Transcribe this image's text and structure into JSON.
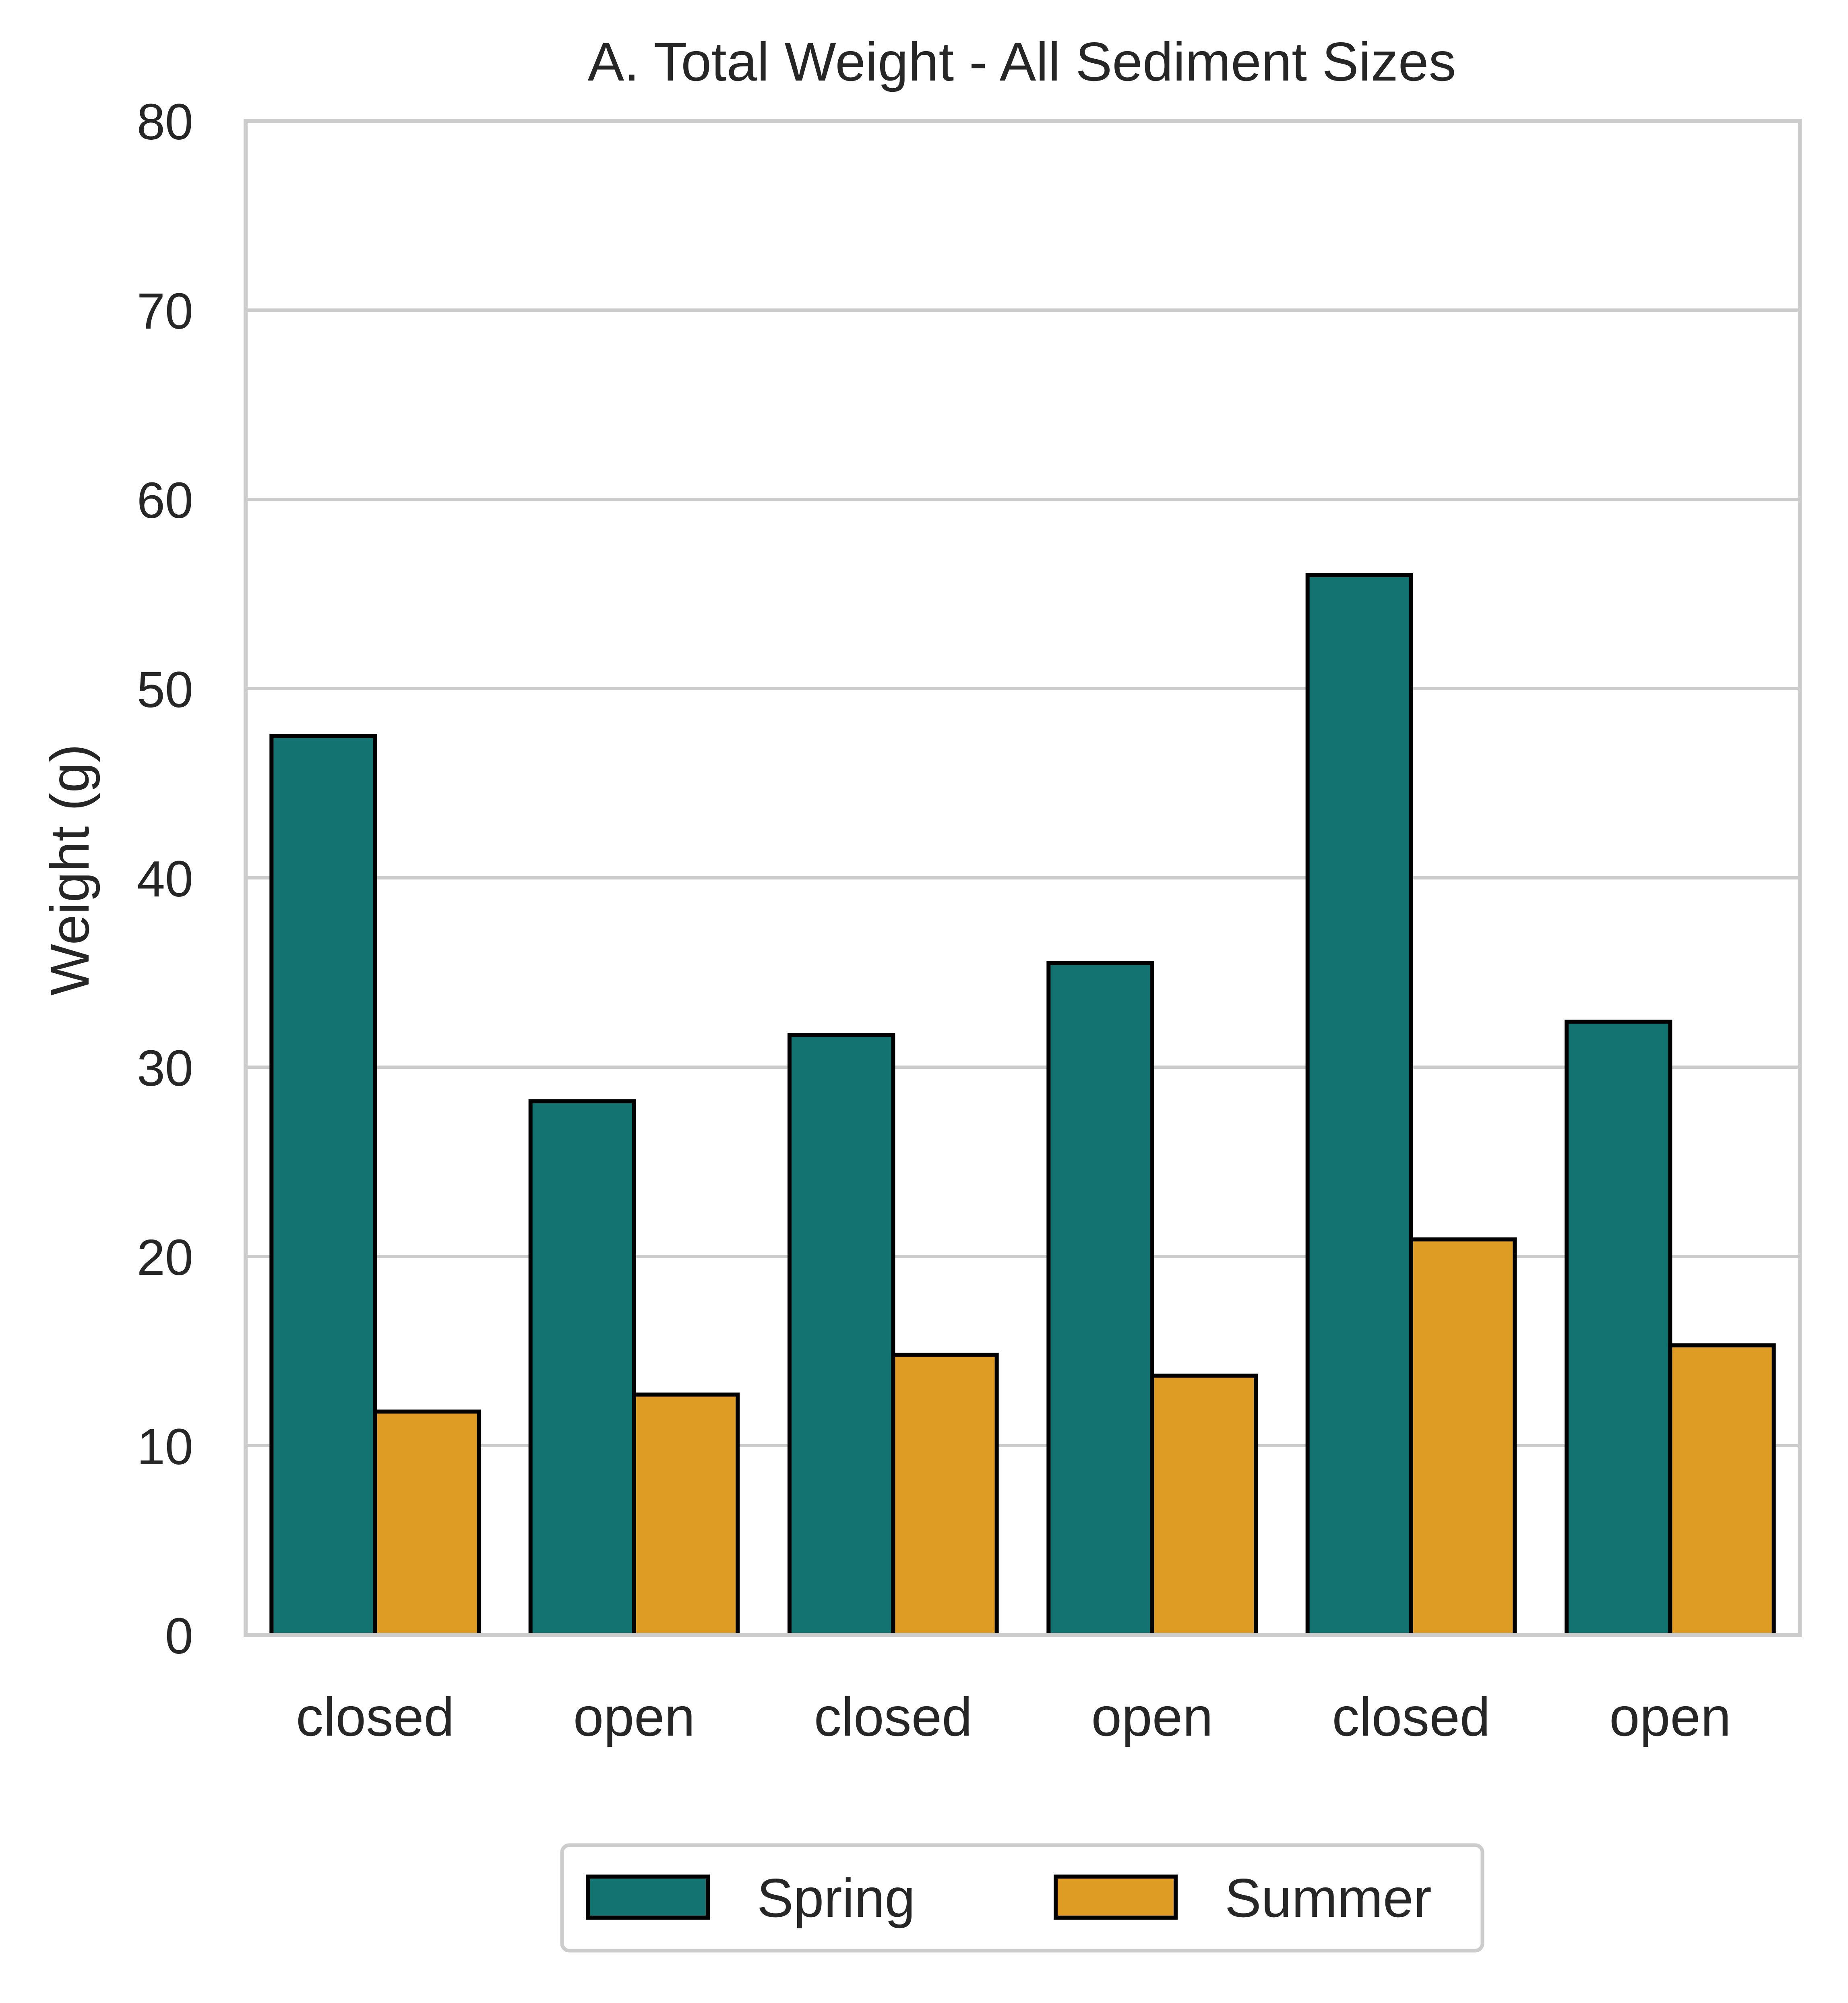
{
  "chart_data": {
    "type": "bar",
    "title": "A. Total Weight - All Sediment Sizes",
    "xlabel": "",
    "ylabel": "Weight (g)",
    "ylim": [
      0,
      80
    ],
    "yticks": [
      "0",
      "10",
      "20",
      "30",
      "40",
      "50",
      "60",
      "70",
      "80"
    ],
    "categories": [
      "closed",
      "open",
      "closed",
      "open",
      "closed",
      "open"
    ],
    "series": [
      {
        "name": "Spring",
        "color": "#137370",
        "values": [
          47.5,
          28.2,
          31.7,
          35.5,
          56.0,
          32.4
        ]
      },
      {
        "name": "Summer",
        "color": "#DF9C25",
        "values": [
          11.8,
          12.7,
          14.8,
          13.7,
          20.9,
          15.3
        ]
      }
    ],
    "grid": "horizontal",
    "legend": "bottom-center",
    "bar_edge_color": "#000000",
    "axis_frame_color": "#CCCCCC"
  }
}
